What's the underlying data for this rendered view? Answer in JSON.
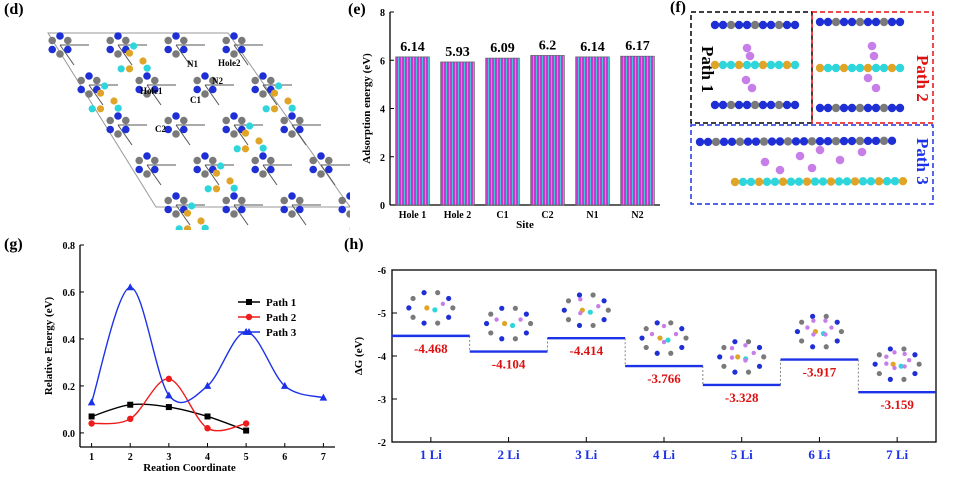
{
  "panels": {
    "d": {
      "label": "(d)",
      "site_labels": [
        "N1",
        "Hole2",
        "Hole1",
        "N2",
        "C1",
        "C2"
      ]
    },
    "e": {
      "label": "(e)"
    },
    "f": {
      "label": "(f)",
      "paths": [
        "Path 1",
        "Path 2",
        "Path 3"
      ]
    },
    "g": {
      "label": "(g)"
    },
    "h": {
      "label": "(h)"
    }
  },
  "colors": {
    "carbon": "#7a7a7a",
    "nitrogen": "#1f2fd6",
    "boron": "#e0a526",
    "cyan": "#2ed6dc",
    "lithium": "#c77ee8",
    "bar": "#c63bc8",
    "path1": "#000000",
    "path2": "#ee1c1c",
    "path3": "#1b32e8",
    "energy_label": "#dd1111",
    "level": "#1b32e8"
  },
  "chart_data": [
    {
      "id": "e",
      "type": "bar",
      "title": "",
      "categories": [
        "Hole 1",
        "Hole 2",
        "C1",
        "C2",
        "N1",
        "N2"
      ],
      "values": [
        6.14,
        5.93,
        6.09,
        6.2,
        6.14,
        6.17
      ],
      "value_labels": [
        "6.14",
        "5.93",
        "6.09",
        "6.2",
        "6.14",
        "6.17"
      ],
      "xlabel": "Site",
      "ylabel": "Adsorption energy (eV)",
      "ylim": [
        0,
        8
      ],
      "yticks": [
        "0",
        "2",
        "4",
        "6",
        "8"
      ]
    },
    {
      "id": "g",
      "type": "line",
      "title": "",
      "xlabel": "Reation Coordinate",
      "ylabel": "Relative Energy (eV)",
      "xlim": [
        0.7,
        7.3
      ],
      "ylim": [
        -0.06,
        0.8
      ],
      "xticks": [
        "1",
        "2",
        "3",
        "4",
        "5",
        "6",
        "7"
      ],
      "yticks": [
        "0.0",
        "0.2",
        "0.4",
        "0.6",
        "0.8"
      ],
      "legend": "right",
      "series": [
        {
          "name": "Path 1",
          "marker": "square",
          "x": [
            1,
            2,
            3,
            4,
            5
          ],
          "values": [
            0.07,
            0.12,
            0.11,
            0.07,
            0.01
          ]
        },
        {
          "name": "Path 2",
          "marker": "circle",
          "x": [
            1,
            2,
            3,
            4,
            5
          ],
          "values": [
            0.04,
            0.06,
            0.23,
            0.02,
            0.04
          ]
        },
        {
          "name": "Path 3",
          "marker": "triangle",
          "x": [
            1,
            2,
            3,
            4,
            5,
            6,
            7
          ],
          "values": [
            0.13,
            0.62,
            0.16,
            0.2,
            0.43,
            0.2,
            0.15
          ]
        }
      ]
    },
    {
      "id": "h",
      "type": "line",
      "title": "",
      "ylabel": "ΔG (eV)",
      "ylim": [
        -2,
        -6
      ],
      "yticks": [
        "-6",
        "-5",
        "-4",
        "-3",
        "-2"
      ],
      "categories": [
        "1 Li",
        "2 Li",
        "3 Li",
        "4 Li",
        "5 Li",
        "6 Li",
        "7 Li"
      ],
      "values": [
        -4.468,
        -4.104,
        -4.414,
        -3.766,
        -3.328,
        -3.917,
        -3.159
      ],
      "value_labels": [
        "-4.468",
        "-4.104",
        "-4.414",
        "-3.766",
        "-3.328",
        "-3.917",
        "-3.159"
      ]
    }
  ]
}
